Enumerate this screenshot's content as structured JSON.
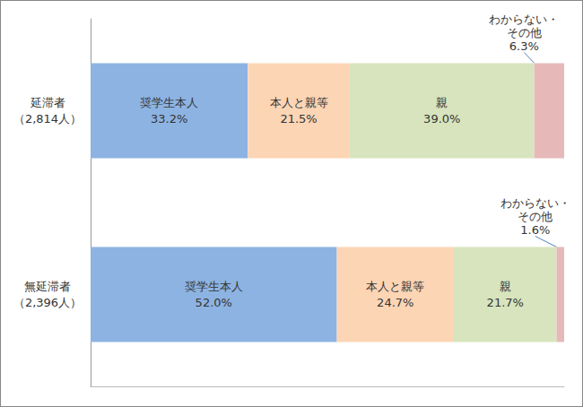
{
  "chart_data": {
    "type": "bar",
    "orientation": "horizontal",
    "stacked": true,
    "data_labels": true,
    "tick_labels": "y",
    "grid": false,
    "categories": [
      "延滞者\n（2,814人）",
      "無延滞者\n（2,396人）"
    ],
    "xlim": [
      0,
      100
    ],
    "series": [
      {
        "name": "奨学生本人",
        "color": "#8DB3E2",
        "values": [
          33.2,
          52.0
        ],
        "value_labels": [
          "33.2%",
          "52.0%"
        ]
      },
      {
        "name": "本人と親等",
        "color": "#FCD5B5",
        "values": [
          21.5,
          24.7
        ],
        "value_labels": [
          "21.5%",
          "24.7%"
        ]
      },
      {
        "name": "親",
        "color": "#D7E4BD",
        "values": [
          39.0,
          21.7
        ],
        "value_labels": [
          "39.0%",
          "21.7%"
        ]
      },
      {
        "name": "わからない・\nその他",
        "color": "#E6B9B8",
        "values": [
          6.3,
          1.6
        ],
        "value_labels": [
          "6.3%",
          "1.6%"
        ]
      }
    ]
  }
}
